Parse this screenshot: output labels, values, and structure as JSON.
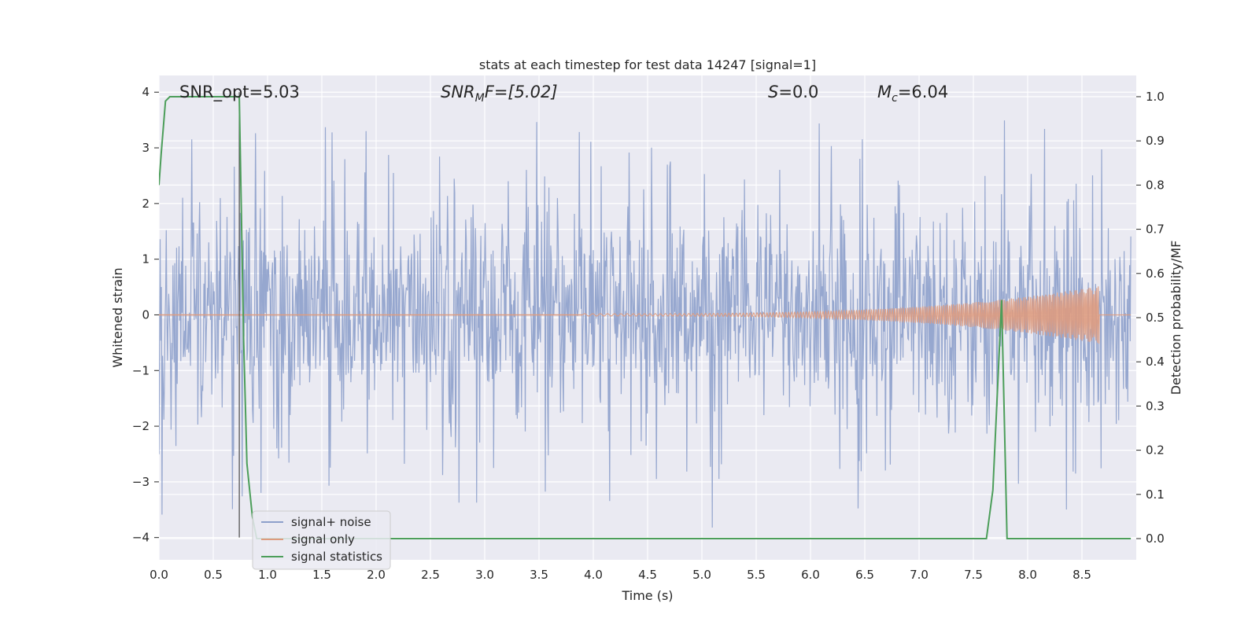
{
  "chart_data": {
    "type": "line",
    "title": "stats at each timestep for test data 14247 [signal=1]",
    "xlabel": "Time (s)",
    "ylabel": "Whitened strain",
    "y2label": "Detection probability/MF",
    "xlim": [
      0,
      9
    ],
    "ylim": [
      -4.4,
      4.3
    ],
    "y2lim": [
      -0.048,
      1.048
    ],
    "xticks": [
      "0.0",
      "0.5",
      "1.0",
      "1.5",
      "2.0",
      "2.5",
      "3.0",
      "3.5",
      "4.0",
      "4.5",
      "5.0",
      "5.5",
      "6.0",
      "6.5",
      "7.0",
      "7.5",
      "8.0",
      "8.5"
    ],
    "xtick_values": [
      0,
      0.5,
      1,
      1.5,
      2,
      2.5,
      3,
      3.5,
      4,
      4.5,
      5,
      5.5,
      6,
      6.5,
      7,
      7.5,
      8,
      8.5
    ],
    "yticks": [
      "4",
      "3",
      "2",
      "1",
      "0",
      "−1",
      "−2",
      "−3",
      "−4"
    ],
    "ytick_values": [
      4,
      3,
      2,
      1,
      0,
      -1,
      -2,
      -3,
      -4
    ],
    "y2ticks": [
      "1.0",
      "0.9",
      "0.8",
      "0.7",
      "0.6",
      "0.5",
      "0.4",
      "0.3",
      "0.2",
      "0.1",
      "0.0"
    ],
    "y2tick_values": [
      1,
      0.9,
      0.8,
      0.7,
      0.6,
      0.5,
      0.4,
      0.3,
      0.2,
      0.1,
      0
    ],
    "grid": true,
    "legend_position": "lower-left",
    "annotations": {
      "snr_opt": "SNR_opt=5.03",
      "snr_mf_sym": "SNR",
      "snr_mf_sub": "M",
      "snr_mf_rest": "F=[5.02]",
      "s_sym": "S",
      "s_rest": "=0.0",
      "mc_sym": "M",
      "mc_sub": "c",
      "mc_rest": "=6.04"
    },
    "series": [
      {
        "name": "signal+ noise",
        "color": "#8da0cb",
        "kind": "noise",
        "typical_range": [
          -2.0,
          2.3
        ],
        "peak_min": -4.0,
        "peak_max": 3.9
      },
      {
        "name": "signal only",
        "color": "#dd9b7f",
        "kind": "chirp",
        "start": 3.9,
        "end": 8.66,
        "amplitude_end": 0.5
      },
      {
        "name": "signal statistics",
        "color": "#4c9e5a",
        "axis": "right",
        "x": [
          0.0,
          0.02,
          0.06,
          0.1,
          0.2,
          0.4,
          0.6,
          0.73,
          0.74,
          0.78,
          0.81,
          0.86,
          0.9,
          2.0,
          4.0,
          6.0,
          7.0,
          7.62,
          7.68,
          7.76,
          7.81,
          7.85,
          8.5,
          8.95
        ],
        "values": [
          0.8,
          0.87,
          0.99,
          1.0,
          1.0,
          1.0,
          1.0,
          1.0,
          1.0,
          0.45,
          0.17,
          0.05,
          0.0,
          0.0,
          0.0,
          0.0,
          0.0,
          0.0,
          0.11,
          0.54,
          0.0,
          0.0,
          0.0,
          0.0
        ]
      }
    ],
    "vline": {
      "x": 0.74,
      "y_from": -4.0,
      "y_to": 4.0,
      "color": "#555555"
    }
  }
}
